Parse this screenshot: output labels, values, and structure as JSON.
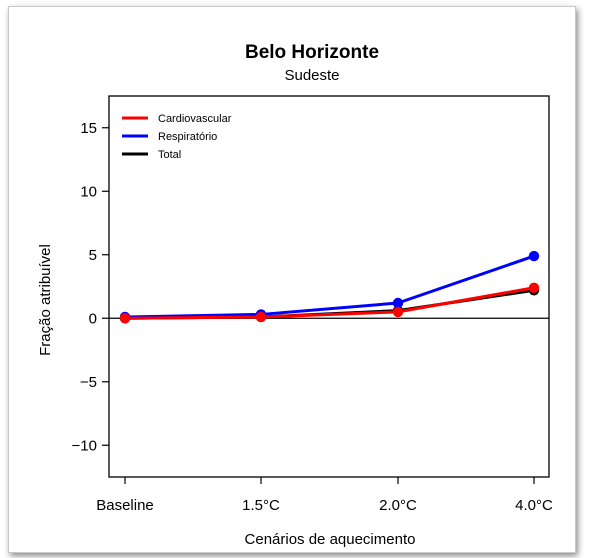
{
  "chart_data": {
    "type": "line",
    "title": "Belo Horizonte",
    "subtitle": "Sudeste",
    "xlabel": "Cenários de aquecimento",
    "ylabel": "Fração atribuível",
    "categories": [
      "Baseline",
      "1.5°C",
      "2.0°C",
      "4.0°C"
    ],
    "yticks": [
      "15",
      "10",
      "5",
      "0",
      "−5",
      "−10"
    ],
    "ytick_values": [
      15,
      10,
      5,
      0,
      -5,
      -10
    ],
    "ylim": [
      -12.5,
      17.5
    ],
    "legend_position": "top-left",
    "reference_line": 0,
    "series": [
      {
        "name": "Cardiovascular",
        "color": "#ff0000",
        "values": [
          0.0,
          0.1,
          0.5,
          2.4
        ]
      },
      {
        "name": "Respiratório",
        "color": "#0000ff",
        "values": [
          0.1,
          0.3,
          1.2,
          4.9
        ]
      },
      {
        "name": "Total",
        "color": "#000000",
        "values": [
          0.0,
          0.1,
          0.6,
          2.2
        ]
      }
    ]
  }
}
